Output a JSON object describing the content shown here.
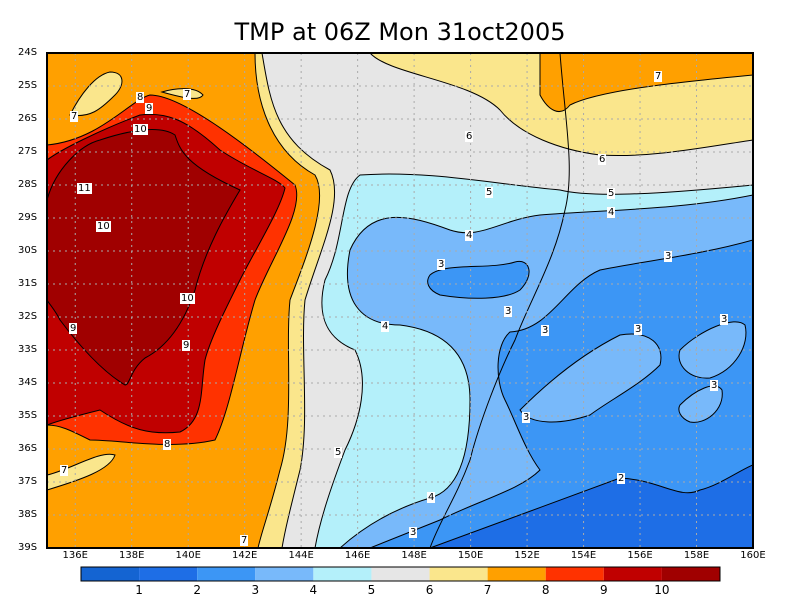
{
  "title": "TMP at 06Z Mon 31oct2005",
  "lat_ticks": [
    "24S",
    "25S",
    "26S",
    "27S",
    "28S",
    "29S",
    "30S",
    "31S",
    "32S",
    "33S",
    "34S",
    "35S",
    "36S",
    "37S",
    "38S",
    "39S"
  ],
  "lon_ticks": [
    "136E",
    "138E",
    "140E",
    "142E",
    "144E",
    "146E",
    "148E",
    "150E",
    "152E",
    "154E",
    "156E",
    "158E",
    "160E"
  ],
  "legend": {
    "labels": [
      "1",
      "2",
      "3",
      "4",
      "5",
      "6",
      "7",
      "8",
      "9",
      "10"
    ],
    "colors": [
      "#1464d2",
      "#1e6ee6",
      "#3c96f5",
      "#78b9fa",
      "#b4f0fa",
      "#e6e6e6",
      "#fae68c",
      "#ffa000",
      "#ff3200",
      "#c00000",
      "#a00000"
    ]
  },
  "contour_labels": [
    "7",
    "7",
    "8",
    "9",
    "10",
    "11",
    "10",
    "10",
    "9",
    "9",
    "8",
    "7",
    "7",
    "7",
    "6",
    "6",
    "5",
    "5",
    "4",
    "4",
    "4",
    "3",
    "3",
    "3",
    "3",
    "3",
    "3",
    "3",
    "3",
    "5",
    "4",
    "3",
    "2"
  ]
}
